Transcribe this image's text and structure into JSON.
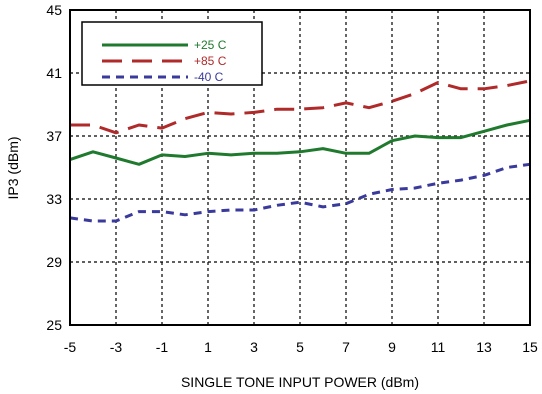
{
  "chart_data": {
    "type": "line",
    "xlabel": "SINGLE TONE INPUT POWER (dBm)",
    "ylabel": "IP3 (dBm)",
    "xlim": [
      -5,
      15
    ],
    "ylim": [
      25,
      45
    ],
    "xticks": [
      -5,
      -3,
      -1,
      1,
      3,
      5,
      7,
      9,
      11,
      13,
      15
    ],
    "yticks": [
      25,
      29,
      33,
      37,
      41,
      45
    ],
    "grid": true,
    "legend_position": "top-left",
    "series": [
      {
        "name": "+25 C",
        "color": "#1f7a2e",
        "dash": "solid",
        "x": [
          -5,
          -4,
          -3,
          -2,
          -1,
          0,
          1,
          2,
          3,
          4,
          5,
          6,
          7,
          8,
          9,
          10,
          11,
          12,
          13,
          14,
          15
        ],
        "y": [
          35.5,
          36.0,
          35.6,
          35.2,
          35.8,
          35.7,
          35.9,
          35.8,
          35.9,
          35.9,
          36.0,
          36.2,
          35.9,
          35.9,
          36.7,
          37.0,
          36.9,
          36.9,
          37.3,
          37.7,
          38.0
        ]
      },
      {
        "name": "+85 C",
        "color": "#b02a2a",
        "dash": "long",
        "x": [
          -5,
          -4,
          -3,
          -2,
          -1,
          0,
          1,
          2,
          3,
          4,
          5,
          6,
          7,
          8,
          9,
          10,
          11,
          12,
          13,
          14,
          15
        ],
        "y": [
          37.7,
          37.7,
          37.2,
          37.7,
          37.5,
          38.1,
          38.5,
          38.4,
          38.5,
          38.7,
          38.7,
          38.8,
          39.1,
          38.8,
          39.2,
          39.7,
          40.4,
          40.0,
          40.0,
          40.2,
          40.5
        ]
      },
      {
        "name": "-40 C",
        "color": "#3a3a9c",
        "dash": "short",
        "x": [
          -5,
          -4,
          -3,
          -2,
          -1,
          0,
          1,
          2,
          3,
          4,
          5,
          6,
          7,
          8,
          9,
          10,
          11,
          12,
          13,
          14,
          15
        ],
        "y": [
          31.8,
          31.6,
          31.6,
          32.2,
          32.2,
          32.0,
          32.2,
          32.3,
          32.3,
          32.6,
          32.8,
          32.5,
          32.7,
          33.3,
          33.6,
          33.7,
          34.0,
          34.2,
          34.5,
          35.0,
          35.2
        ]
      }
    ]
  }
}
